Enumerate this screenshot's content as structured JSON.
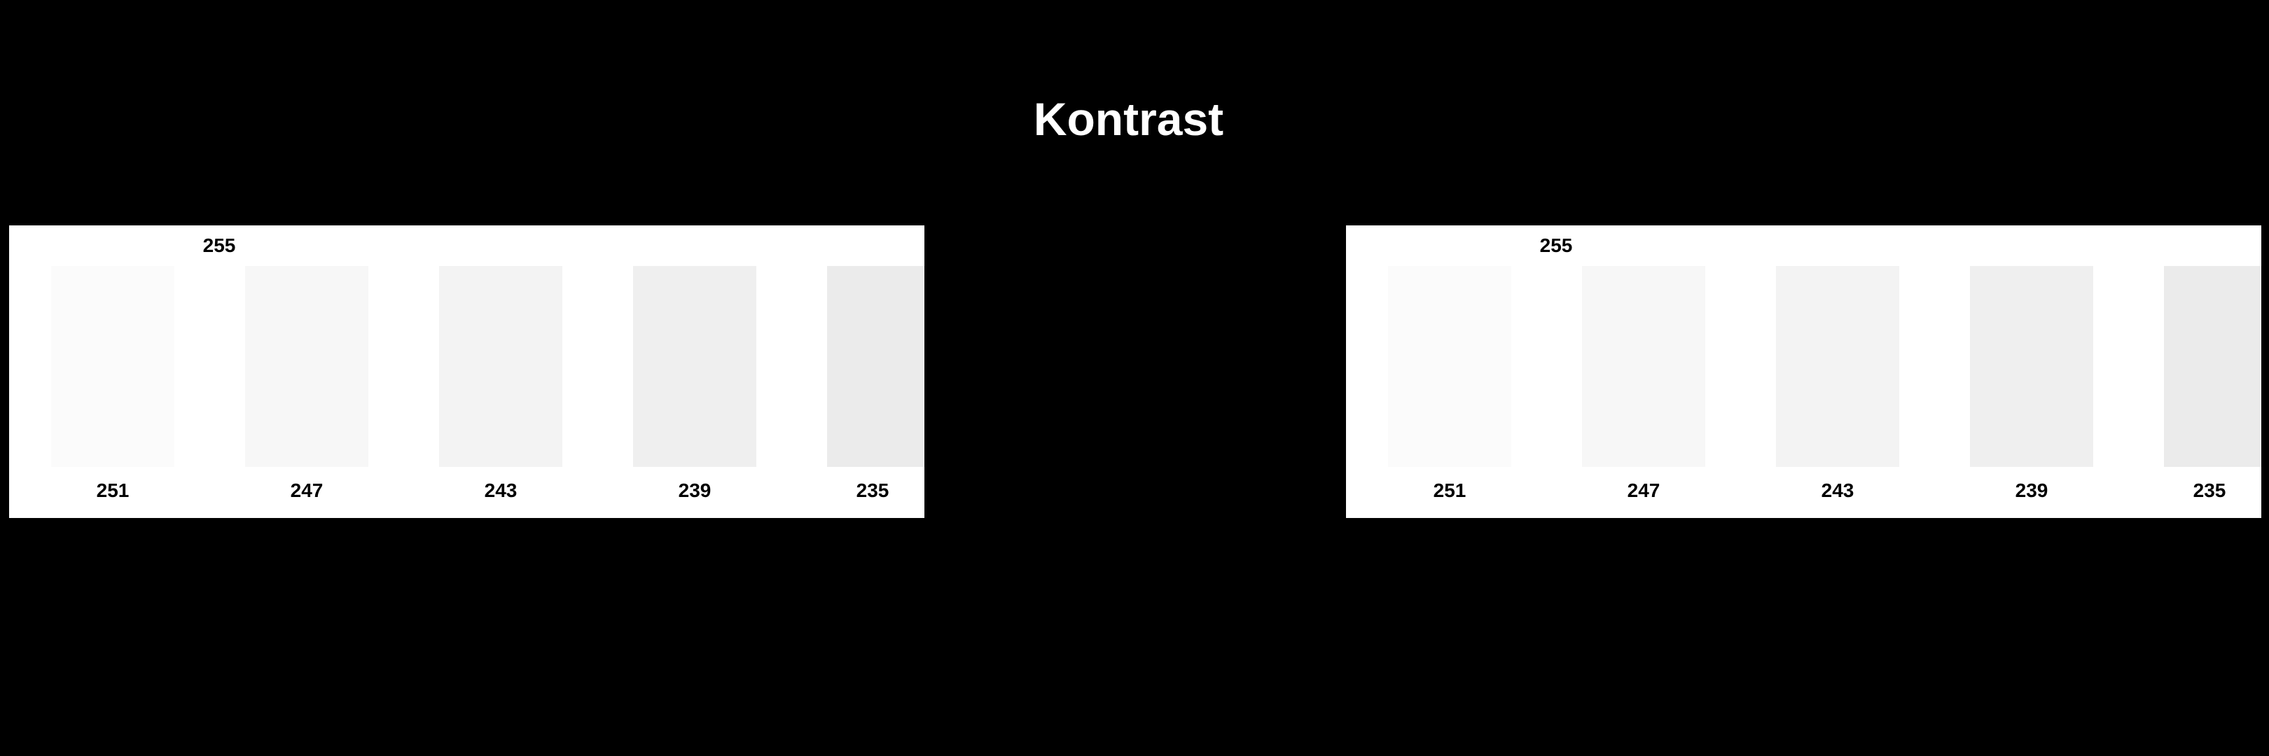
{
  "title": "Kontrast",
  "panels": [
    {
      "background_label": "255",
      "background_color": "#ffffff",
      "swatches": [
        {
          "label": "251",
          "color": "#fbfbfb"
        },
        {
          "label": "247",
          "color": "#f7f7f7"
        },
        {
          "label": "243",
          "color": "#f3f3f3"
        },
        {
          "label": "239",
          "color": "#efefef"
        },
        {
          "label": "235",
          "color": "#ebebeb"
        }
      ]
    },
    {
      "background_label": "255",
      "background_color": "#ffffff",
      "swatches": [
        {
          "label": "251",
          "color": "#fbfbfb"
        },
        {
          "label": "247",
          "color": "#f7f7f7"
        },
        {
          "label": "243",
          "color": "#f3f3f3"
        },
        {
          "label": "239",
          "color": "#efefef"
        },
        {
          "label": "235",
          "color": "#ebebeb"
        }
      ]
    }
  ]
}
